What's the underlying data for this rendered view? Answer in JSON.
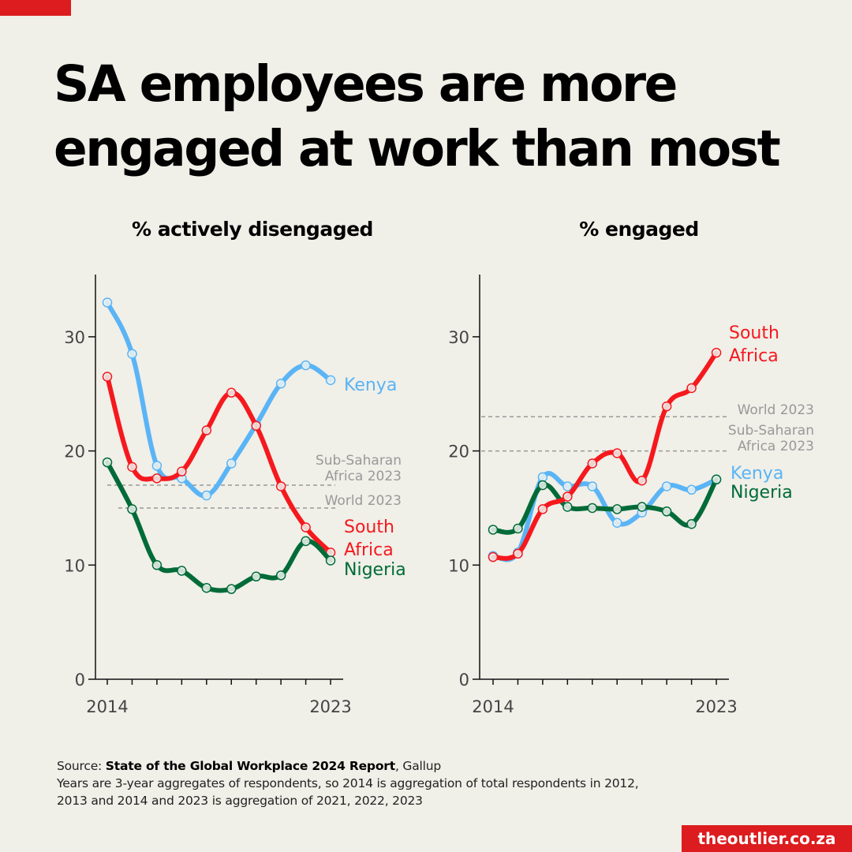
{
  "title_line1": "SA employees are more",
  "title_line2": "engaged at work than most",
  "source": {
    "prefix": "Source: ",
    "report": "State of the Global Workplace 2024 Report",
    "suffix": ", Gallup",
    "note_line1": "Years are 3-year aggregates of respondents, so 2014 is aggregation of total respondents in 2012,",
    "note_line2": "2013 and 2014 and 2023 is aggregation of 2021, 2022, 2023"
  },
  "brand": "theoutlier.co.za",
  "colors": {
    "accent": "#dc1c1e",
    "kenya": "#5ab4f5",
    "south_africa": "#f5191e",
    "nigeria": "#006b38",
    "ref": "#999999"
  },
  "chart_data": [
    {
      "type": "line",
      "title": "% actively disengaged",
      "x": [
        2014,
        2015,
        2016,
        2017,
        2018,
        2019,
        2020,
        2021,
        2022,
        2023
      ],
      "x_tick_labels": [
        "2014",
        "2023"
      ],
      "y_ticks": [
        0,
        10,
        20,
        30
      ],
      "ylim": [
        0,
        35
      ],
      "series": [
        {
          "name": "Kenya",
          "label": [
            "Kenya"
          ],
          "color_key": "kenya",
          "values": [
            33.0,
            28.5,
            18.7,
            17.6,
            16.1,
            18.9,
            22.3,
            25.9,
            27.5,
            26.2
          ]
        },
        {
          "name": "South Africa",
          "label": [
            "South",
            "Africa"
          ],
          "color_key": "south_africa",
          "values": [
            26.5,
            18.6,
            17.6,
            18.2,
            21.8,
            25.1,
            22.2,
            16.9,
            13.3,
            11.1
          ]
        },
        {
          "name": "Nigeria",
          "label": [
            "Nigeria"
          ],
          "color_key": "nigeria",
          "values": [
            19.0,
            14.9,
            10.0,
            9.5,
            8.0,
            7.9,
            9.0,
            9.1,
            12.1,
            10.4
          ]
        }
      ],
      "reference_lines": [
        {
          "label": [
            "Sub-Saharan",
            "Africa 2023"
          ],
          "value": 17.0
        },
        {
          "label": [
            "World 2023"
          ],
          "value": 15.0
        }
      ]
    },
    {
      "type": "line",
      "title": "% engaged",
      "x": [
        2014,
        2015,
        2016,
        2017,
        2018,
        2019,
        2020,
        2021,
        2022,
        2023
      ],
      "x_tick_labels": [
        "2014",
        "2023"
      ],
      "y_ticks": [
        0,
        10,
        20,
        30
      ],
      "ylim": [
        0,
        35
      ],
      "series": [
        {
          "name": "Kenya",
          "label": [
            "Kenya"
          ],
          "color_key": "kenya",
          "values": [
            10.8,
            11.1,
            17.7,
            16.9,
            16.9,
            13.7,
            14.6,
            16.9,
            16.6,
            17.5
          ]
        },
        {
          "name": "Nigeria",
          "label": [
            "Nigeria"
          ],
          "color_key": "nigeria",
          "values": [
            13.1,
            13.2,
            17.0,
            15.1,
            15.0,
            14.9,
            15.1,
            14.7,
            13.6,
            17.5
          ]
        },
        {
          "name": "South Africa",
          "label": [
            "South",
            "Africa"
          ],
          "color_key": "south_africa",
          "values": [
            10.7,
            11.0,
            14.9,
            16.0,
            18.9,
            19.8,
            17.4,
            23.9,
            25.5,
            28.6
          ]
        }
      ],
      "reference_lines": [
        {
          "label": [
            "World 2023"
          ],
          "value": 23.0
        },
        {
          "label": [
            "Sub-Saharan",
            "Africa 2023"
          ],
          "value": 20.0
        }
      ]
    }
  ]
}
